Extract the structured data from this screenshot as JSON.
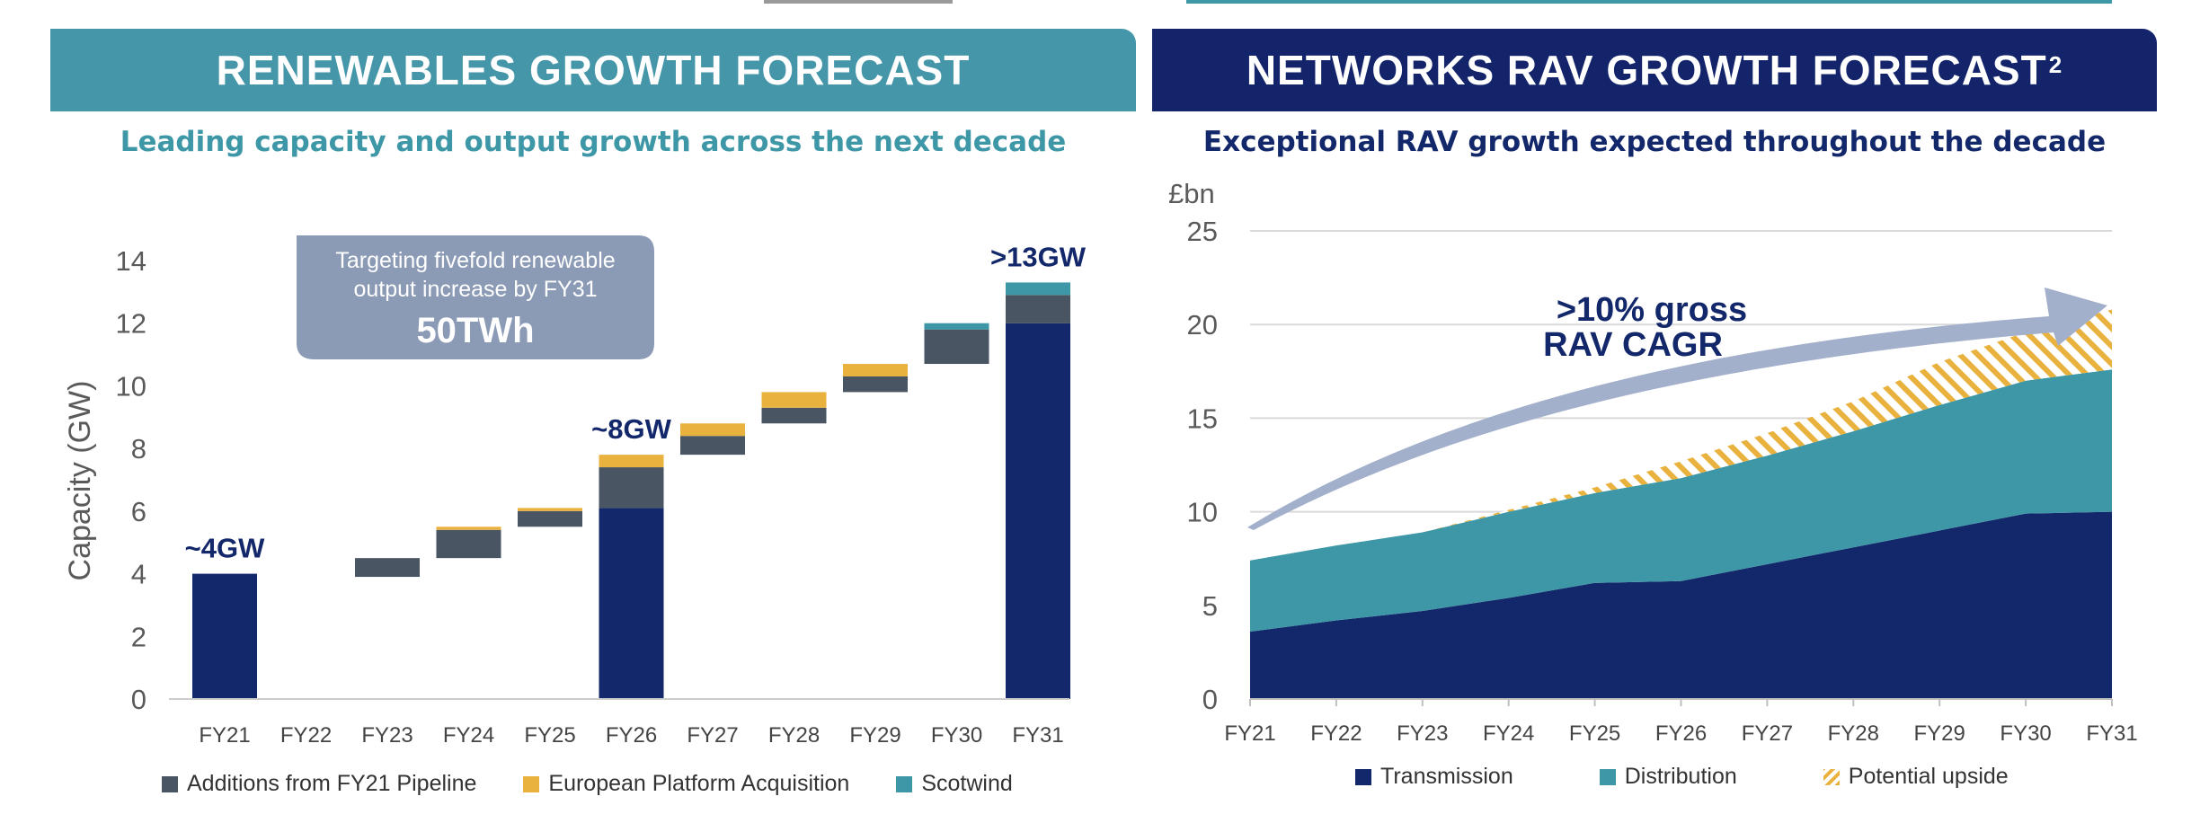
{
  "colors": {
    "teal_header": "#4596a8",
    "navy_header": "#13246b",
    "teal_text": "#3d97a6",
    "navy": "#13276b",
    "gray": "#4a5563",
    "yellow": "#e9b23e",
    "teal": "#3d97a6",
    "callout": "#8b9ab5",
    "arrow": "#a3b0cb"
  },
  "left": {
    "header": "RENEWABLES GROWTH FORECAST",
    "subtitle": "Leading capacity and output growth across the next decade",
    "callout": {
      "line1": "Targeting fivefold renewable",
      "line2": "output increase by FY31",
      "value": "50TWh"
    },
    "legend": [
      {
        "label": "Additions from FY21 Pipeline",
        "color": "#4a5563"
      },
      {
        "label": "European Platform Acquisition",
        "color": "#e9b23e"
      },
      {
        "label": "Scotwind",
        "color": "#3d97a6"
      }
    ]
  },
  "right": {
    "header": "NETWORKS RAV GROWTH FORECAST",
    "header_sup": "2",
    "subtitle": "Exceptional RAV growth expected throughout the decade",
    "arrow_label_1": ">10% gross",
    "arrow_label_2": "RAV CAGR",
    "legend": [
      {
        "label": "Transmission",
        "color": "#13276b"
      },
      {
        "label": "Distribution",
        "color": "#3d97a6"
      },
      {
        "label": "Potential upside",
        "color": "#e9b23e"
      }
    ]
  },
  "chart_data": [
    {
      "type": "bar",
      "subtype": "waterfall-stacked",
      "title": "RENEWABLES GROWTH FORECAST",
      "ylabel": "Capacity (GW)",
      "xlabel": "",
      "ylim": [
        0,
        14
      ],
      "yticks": [
        0,
        2,
        4,
        6,
        8,
        10,
        12,
        14
      ],
      "categories": [
        "FY21",
        "FY22",
        "FY23",
        "FY24",
        "FY25",
        "FY26",
        "FY27",
        "FY28",
        "FY29",
        "FY30",
        "FY31"
      ],
      "bars": [
        {
          "category": "FY21",
          "segments": [
            {
              "series": "Total",
              "from": 0,
              "to": 4.0
            }
          ],
          "label": "~4GW"
        },
        {
          "category": "FY22",
          "segments": []
        },
        {
          "category": "FY23",
          "segments": [
            {
              "series": "Additions from FY21 Pipeline",
              "from": 3.9,
              "to": 4.5
            }
          ]
        },
        {
          "category": "FY24",
          "segments": [
            {
              "series": "Additions from FY21 Pipeline",
              "from": 4.5,
              "to": 5.4
            },
            {
              "series": "European Platform Acquisition",
              "from": 5.4,
              "to": 5.5
            }
          ]
        },
        {
          "category": "FY25",
          "segments": [
            {
              "series": "Additions from FY21 Pipeline",
              "from": 5.5,
              "to": 6.0
            },
            {
              "series": "European Platform Acquisition",
              "from": 6.0,
              "to": 6.1
            }
          ]
        },
        {
          "category": "FY26",
          "segments": [
            {
              "series": "Total",
              "from": 0,
              "to": 6.1
            },
            {
              "series": "Additions from FY21 Pipeline",
              "from": 6.1,
              "to": 7.4
            },
            {
              "series": "European Platform Acquisition",
              "from": 7.4,
              "to": 7.8
            }
          ],
          "label": "~8GW"
        },
        {
          "category": "FY27",
          "segments": [
            {
              "series": "Additions from FY21 Pipeline",
              "from": 7.8,
              "to": 8.4
            },
            {
              "series": "European Platform Acquisition",
              "from": 8.4,
              "to": 8.8
            }
          ]
        },
        {
          "category": "FY28",
          "segments": [
            {
              "series": "Additions from FY21 Pipeline",
              "from": 8.8,
              "to": 9.3
            },
            {
              "series": "European Platform Acquisition",
              "from": 9.3,
              "to": 9.8
            }
          ]
        },
        {
          "category": "FY29",
          "segments": [
            {
              "series": "Additions from FY21 Pipeline",
              "from": 9.8,
              "to": 10.3
            },
            {
              "series": "European Platform Acquisition",
              "from": 10.3,
              "to": 10.7
            }
          ]
        },
        {
          "category": "FY30",
          "segments": [
            {
              "series": "Additions from FY21 Pipeline",
              "from": 10.7,
              "to": 11.8
            },
            {
              "series": "Scotwind",
              "from": 11.8,
              "to": 12.0
            }
          ]
        },
        {
          "category": "FY31",
          "segments": [
            {
              "series": "Total",
              "from": 0,
              "to": 12.0
            },
            {
              "series": "Additions from FY21 Pipeline",
              "from": 12.0,
              "to": 12.9
            },
            {
              "series": "Scotwind",
              "from": 12.9,
              "to": 13.3
            }
          ],
          "label": ">13GW"
        }
      ]
    },
    {
      "type": "area",
      "stacked": true,
      "title": "NETWORKS RAV GROWTH FORECAST",
      "ylabel": "£bn",
      "xlabel": "",
      "ylim": [
        0,
        25
      ],
      "yticks": [
        0,
        5,
        10,
        15,
        20,
        25
      ],
      "grid": true,
      "x": [
        "FY21",
        "FY22",
        "FY23",
        "FY24",
        "FY25",
        "FY26",
        "FY27",
        "FY28",
        "FY29",
        "FY30",
        "FY31"
      ],
      "series": [
        {
          "name": "Transmission",
          "values": [
            3.6,
            4.2,
            4.7,
            5.4,
            6.2,
            6.3,
            7.2,
            8.1,
            9.0,
            9.9,
            10.0
          ]
        },
        {
          "name": "Distribution",
          "values": [
            3.8,
            4.0,
            4.2,
            4.6,
            4.8,
            5.5,
            5.8,
            6.2,
            6.7,
            7.1,
            7.6
          ]
        },
        {
          "name": "Potential upside",
          "values": [
            0,
            0,
            0,
            0.1,
            0.3,
            0.9,
            1.2,
            1.6,
            2.3,
            2.6,
            3.2
          ]
        }
      ]
    }
  ]
}
